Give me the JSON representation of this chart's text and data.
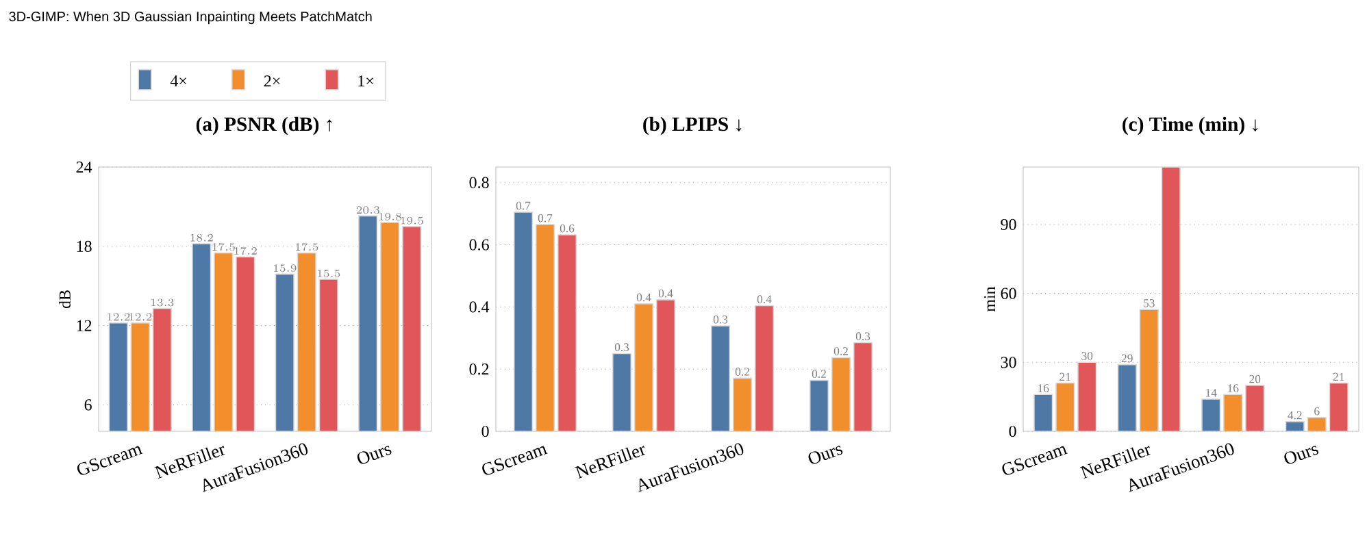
{
  "chart_data": [
    {
      "type": "bar",
      "title": "(a) PSNR (dB) ↑",
      "ylabel": "dB",
      "annotations": [
        "3D-GIMP: When 3D Gaussian Inpainting Meets PatchMatch"
      ],
      "categories": [
        "GScream",
        "NeRFiller",
        "AuraFusion360",
        "Ours"
      ],
      "ylim": [
        4,
        24
      ],
      "yticks": [
        6,
        12,
        18,
        24
      ],
      "grid": "y",
      "legend": "top",
      "data_labels": true,
      "series": [
        {
          "name": "4×",
          "color": "#4e79a7",
          "values": [
            12.2,
            18.2,
            15.9,
            20.3
          ]
        },
        {
          "name": "2×",
          "color": "#f28e2b",
          "values": [
            12.2,
            17.5,
            17.5,
            19.8
          ]
        },
        {
          "name": "1×",
          "color": "#e15759",
          "values": [
            13.3,
            17.2,
            15.5,
            19.5
          ]
        }
      ]
    },
    {
      "type": "bar",
      "title": "(b) LPIPS ↓",
      "categories": [
        "GScream",
        "NeRFiller",
        "AuraFusion360",
        "Ours"
      ],
      "ylim": [
        0,
        0.85
      ],
      "yticks": [
        0,
        0.2,
        0.4,
        0.6,
        0.8
      ],
      "grid": "y",
      "series": [
        {
          "color": "#4e79a7",
          "values": [
            0.705,
            0.25,
            0.339,
            0.164
          ],
          "value_labels": [
            "0.7",
            "0.3",
            "0.3",
            "0.2"
          ]
        },
        {
          "color": "#f28e2b",
          "values": [
            0.665,
            0.41,
            0.171,
            0.237
          ],
          "value_labels": [
            "0.7",
            "0.4",
            "0.2",
            "0.2"
          ]
        },
        {
          "color": "#e15759",
          "values": [
            0.632,
            0.423,
            0.404,
            0.285
          ],
          "value_labels": [
            "0.6",
            "0.4",
            "0.4",
            "0.3"
          ]
        }
      ]
    },
    {
      "type": "bar",
      "title": "(c) Time (min) ↓",
      "ylabel": "min",
      "categories": [
        "GScream",
        "NeRFiller",
        "AuraFusion360",
        "Ours"
      ],
      "ylim": [
        0,
        115
      ],
      "yticks": [
        0,
        30,
        60,
        90
      ],
      "grid": "y",
      "series": [
        {
          "color": "#4e79a7",
          "values": [
            16,
            29,
            14,
            4.2
          ],
          "value_labels": [
            "16",
            "29",
            "14",
            "4.2"
          ]
        },
        {
          "color": "#f28e2b",
          "values": [
            21,
            53,
            16,
            6
          ],
          "value_labels": [
            "21",
            "53",
            "16",
            "6"
          ]
        },
        {
          "color": "#e15759",
          "values": [
            30,
            115,
            20,
            21
          ],
          "value_labels": [
            "30",
            null,
            "20",
            "21"
          ]
        }
      ]
    }
  ]
}
